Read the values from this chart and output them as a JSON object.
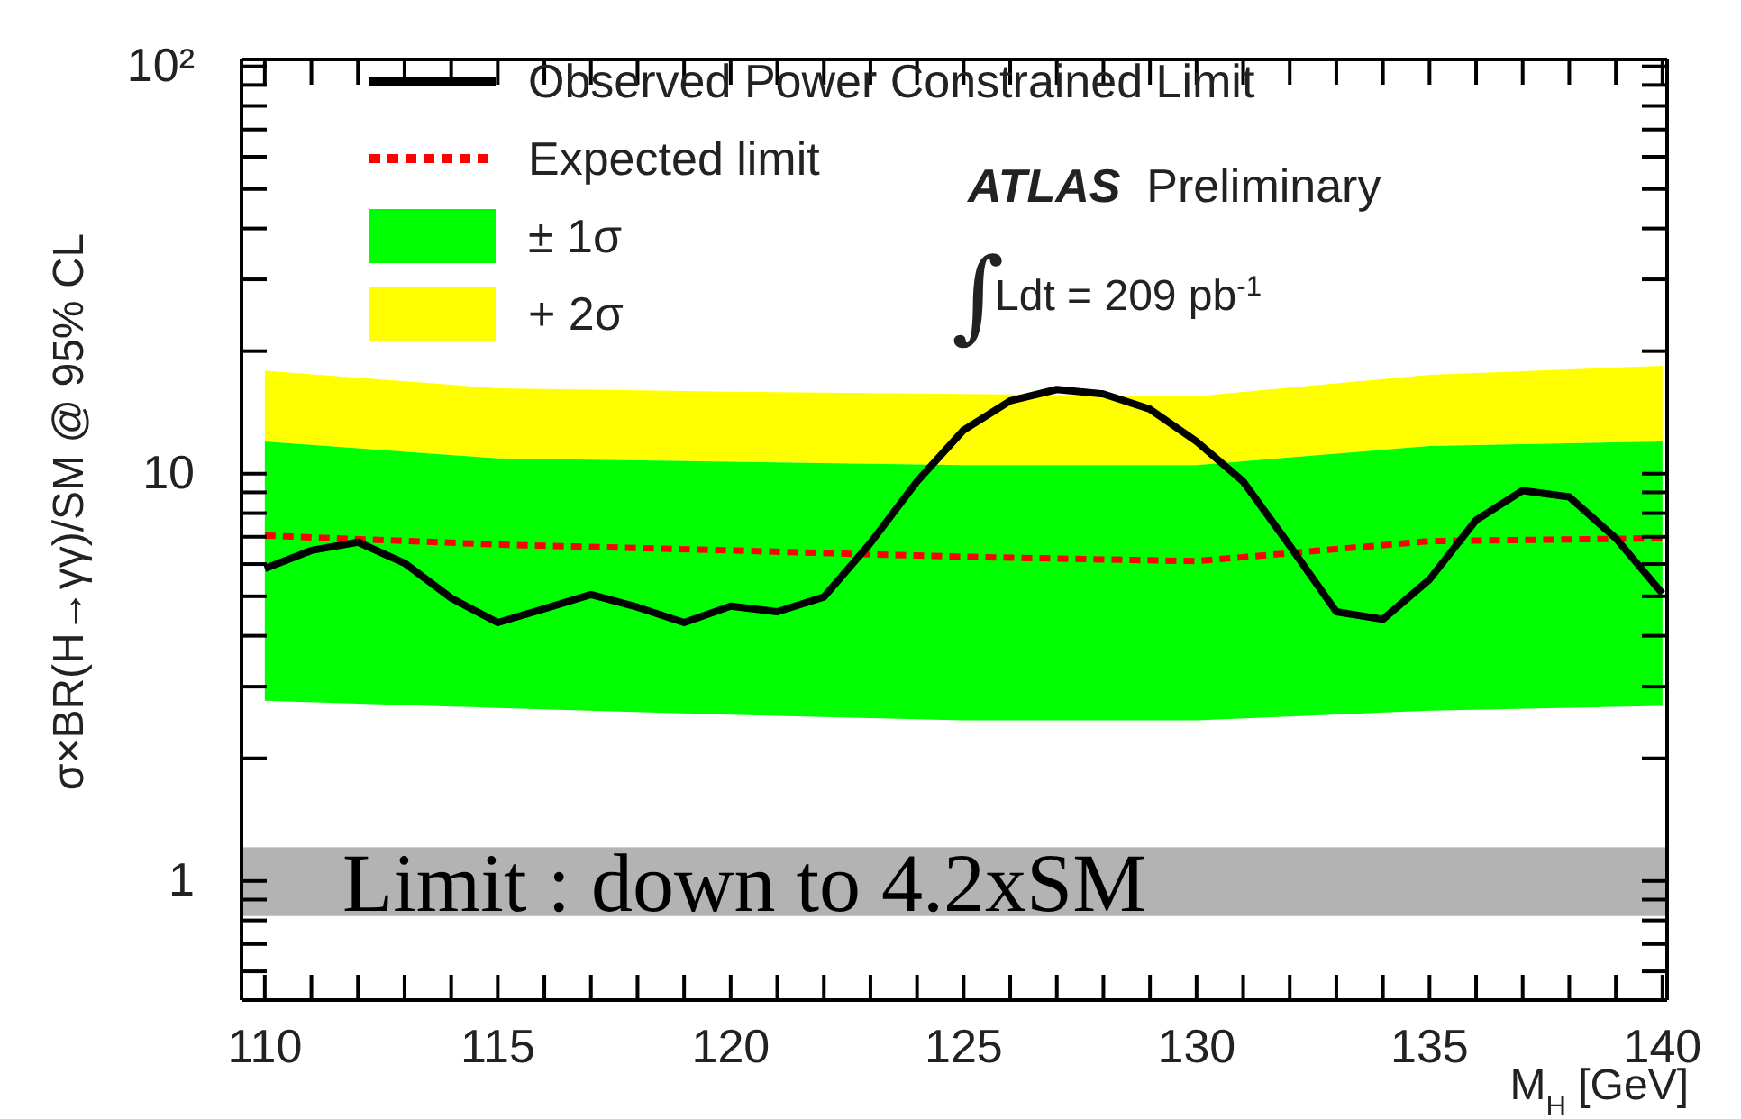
{
  "chart_data": {
    "type": "line",
    "xlabel": "M$_{H}$ [GeV]",
    "ylabel": "σ×BR(H→γγ)/SM @ 95% CL",
    "log": "y",
    "legend": "top left",
    "xlim": [
      109.5,
      140.1
    ],
    "ylim": [
      0.51,
      104
    ],
    "xticks": [
      110,
      {
        "value": 111,
        "label": null
      },
      {
        "value": 112,
        "label": null
      },
      {
        "value": 113,
        "label": null
      },
      {
        "value": 114,
        "label": null
      },
      115,
      {
        "value": 116,
        "label": null
      },
      {
        "value": 117,
        "label": null
      },
      {
        "value": 118,
        "label": null
      },
      {
        "value": 119,
        "label": null
      },
      120,
      {
        "value": 121,
        "label": null
      },
      {
        "value": 122,
        "label": null
      },
      {
        "value": 123,
        "label": null
      },
      {
        "value": 124,
        "label": null
      },
      125,
      {
        "value": 126,
        "label": null
      },
      {
        "value": 127,
        "label": null
      },
      {
        "value": 128,
        "label": null
      },
      {
        "value": 129,
        "label": null
      },
      130,
      {
        "value": 131,
        "label": null
      },
      {
        "value": 132,
        "label": null
      },
      {
        "value": 133,
        "label": null
      },
      {
        "value": 134,
        "label": null
      },
      135,
      {
        "value": 136,
        "label": null
      },
      {
        "value": 137,
        "label": null
      },
      {
        "value": 138,
        "label": null
      },
      {
        "value": 139,
        "label": null
      },
      140
    ],
    "yticks": [
      {
        "value": 0.6,
        "label": null
      },
      {
        "value": 0.7,
        "label": null
      },
      {
        "value": 0.8,
        "label": null
      },
      {
        "value": 0.9,
        "label": null
      },
      1,
      {
        "value": 2,
        "label": null
      },
      {
        "value": 3,
        "label": null
      },
      {
        "value": 4,
        "label": null
      },
      {
        "value": 5,
        "label": null
      },
      {
        "value": 6,
        "label": null
      },
      {
        "value": 7,
        "label": null
      },
      {
        "value": 8,
        "label": null
      },
      {
        "value": 9,
        "label": null
      },
      10,
      {
        "value": 20,
        "label": null
      },
      {
        "value": 30,
        "label": null
      },
      {
        "value": 40,
        "label": null
      },
      {
        "value": 50,
        "label": null
      },
      {
        "value": 60,
        "label": null
      },
      {
        "value": 70,
        "label": null
      },
      {
        "value": 80,
        "label": null
      },
      {
        "value": 90,
        "label": null
      },
      {
        "value": 100,
        "label": "10²"
      }
    ],
    "series": [
      {
        "type": "area",
        "name": "+ 2σ",
        "color": "#ffff00",
        "x": [
          110,
          115,
          120,
          125,
          130,
          135,
          140
        ],
        "values": [
          null,
          null,
          null,
          null,
          null,
          null,
          null
        ],
        "lower": [
          12.0,
          10.9,
          10.7,
          10.5,
          10.5,
          11.7,
          12.0
        ],
        "upper": [
          17.9,
          16.2,
          15.9,
          15.7,
          15.5,
          17.5,
          18.4
        ]
      },
      {
        "type": "area",
        "name": "± 1σ",
        "color": "#00ff00",
        "x": [
          110,
          115,
          120,
          125,
          130,
          135,
          140
        ],
        "values": [
          null,
          null,
          null,
          null,
          null,
          null,
          null
        ],
        "lower": [
          2.77,
          2.66,
          2.56,
          2.48,
          2.48,
          2.62,
          2.69
        ],
        "upper": [
          12.0,
          10.9,
          10.7,
          10.5,
          10.5,
          11.7,
          12.0
        ]
      },
      {
        "name": "Expected limit",
        "color": "#ff0000",
        "line_style": "dotted",
        "x": [
          110,
          115,
          120,
          125,
          130,
          135,
          140
        ],
        "values": [
          7.05,
          6.7,
          6.48,
          6.25,
          6.1,
          6.83,
          6.94
        ]
      },
      {
        "name": "Observed Power Constrained Limit",
        "color": "#000000",
        "line_style": "solid",
        "x": [
          110,
          111,
          112,
          113,
          114,
          115,
          116,
          117,
          118,
          119,
          120,
          121,
          122,
          123,
          124,
          125,
          126,
          127,
          128,
          129,
          130,
          131,
          132,
          133,
          134,
          135,
          136,
          137,
          138,
          139,
          140
        ],
        "values": [
          5.85,
          6.48,
          6.79,
          6.03,
          4.95,
          4.31,
          4.66,
          5.05,
          4.7,
          4.31,
          4.73,
          4.58,
          4.98,
          6.76,
          9.57,
          12.8,
          15.1,
          16.1,
          15.7,
          14.4,
          12.0,
          9.57,
          6.66,
          4.58,
          4.39,
          5.5,
          7.69,
          9.09,
          8.77,
          6.94,
          5.08
        ]
      }
    ],
    "bands": [
      {
        "axis": "y",
        "from": 0.82,
        "to": 1.21,
        "label": "Limit : down to 4.2xSM",
        "color": "#b3b3b3"
      }
    ],
    "annotations": [
      "ATLAS Preliminary",
      "∫",
      "Ldt = 209 pb$^{-1}$"
    ]
  }
}
